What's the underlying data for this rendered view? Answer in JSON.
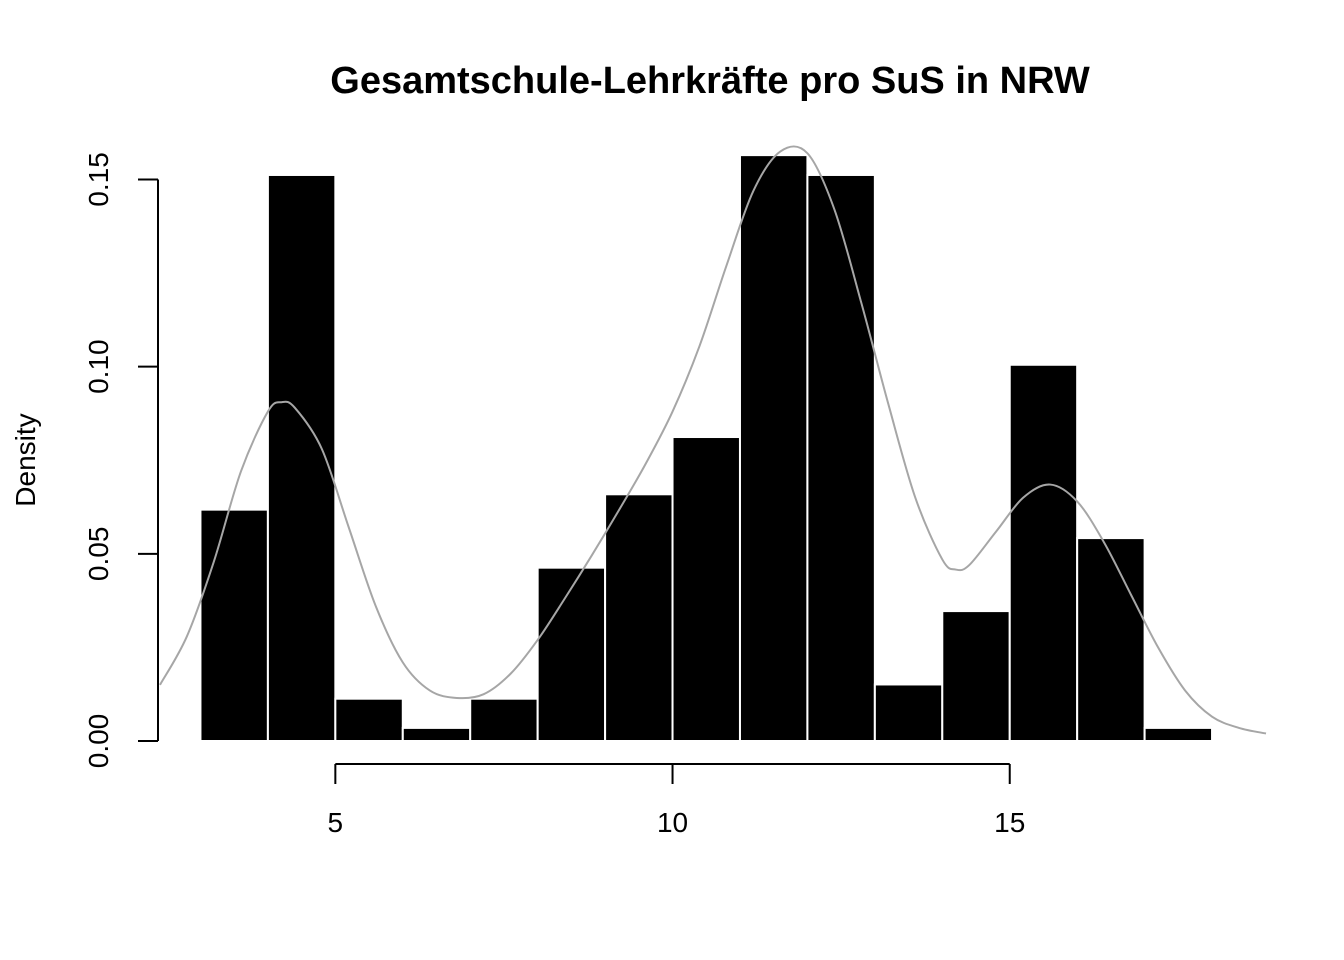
{
  "chart_data": {
    "type": "histogram",
    "title": "Gesamtschule-Lehrkräfte pro SuS in NRW",
    "xlabel": "",
    "ylabel": "Density",
    "xlim": [
      2.4,
      18.8
    ],
    "ylim": [
      0,
      0.156
    ],
    "x_ticks": [
      5,
      10,
      15
    ],
    "x_tick_labels": [
      "5",
      "10",
      "15"
    ],
    "y_ticks": [
      0,
      0.05,
      0.1,
      0.15
    ],
    "y_tick_labels": [
      "0.00",
      "0.05",
      "0.10",
      "0.15"
    ],
    "grid": false,
    "legend": "none",
    "bar_color": "#000000",
    "bar_border_color": "#ffffff",
    "density_color": "#a6a6a6",
    "bins": [
      {
        "start": 3,
        "end": 4,
        "density": 0.0618
      },
      {
        "start": 4,
        "end": 5,
        "density": 0.1512
      },
      {
        "start": 5,
        "end": 6,
        "density": 0.0113
      },
      {
        "start": 6,
        "end": 7,
        "density": 0.0035
      },
      {
        "start": 7,
        "end": 8,
        "density": 0.0113
      },
      {
        "start": 8,
        "end": 9,
        "density": 0.0463
      },
      {
        "start": 9,
        "end": 10,
        "density": 0.0659
      },
      {
        "start": 10,
        "end": 11,
        "density": 0.0812
      },
      {
        "start": 11,
        "end": 12,
        "density": 0.1565
      },
      {
        "start": 12,
        "end": 13,
        "density": 0.1512
      },
      {
        "start": 13,
        "end": 14,
        "density": 0.0151
      },
      {
        "start": 14,
        "end": 15,
        "density": 0.0347
      },
      {
        "start": 15,
        "end": 16,
        "density": 0.1005
      },
      {
        "start": 16,
        "end": 17,
        "density": 0.0542
      },
      {
        "start": 17,
        "end": 18,
        "density": 0.0035
      }
    ],
    "density_curve": {
      "x": [
        2.4,
        2.8,
        3.2,
        3.6,
        4.0,
        4.2,
        4.4,
        4.8,
        5.2,
        5.6,
        6.0,
        6.4,
        6.8,
        7.2,
        7.6,
        8.0,
        8.4,
        8.8,
        9.2,
        9.6,
        10.0,
        10.4,
        10.8,
        11.2,
        11.6,
        12.0,
        12.4,
        12.8,
        13.2,
        13.6,
        14.0,
        14.2,
        14.4,
        14.8,
        15.2,
        15.6,
        16.0,
        16.4,
        16.8,
        17.2,
        17.6,
        18.0,
        18.4,
        18.8
      ],
      "y": [
        0.015,
        0.028,
        0.048,
        0.072,
        0.088,
        0.0905,
        0.089,
        0.078,
        0.057,
        0.036,
        0.021,
        0.0135,
        0.0115,
        0.0125,
        0.018,
        0.027,
        0.038,
        0.0495,
        0.0615,
        0.074,
        0.088,
        0.1055,
        0.127,
        0.147,
        0.1575,
        0.157,
        0.142,
        0.117,
        0.09,
        0.065,
        0.0485,
        0.0458,
        0.047,
        0.056,
        0.065,
        0.0685,
        0.064,
        0.053,
        0.039,
        0.025,
        0.0135,
        0.0065,
        0.0035,
        0.002
      ]
    }
  }
}
